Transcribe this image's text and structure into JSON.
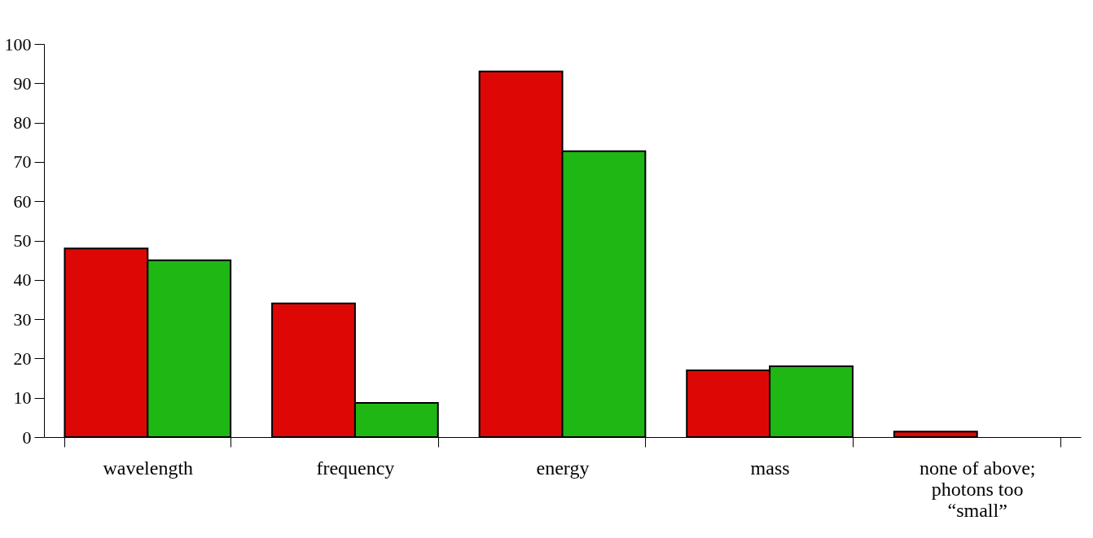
{
  "chart_data": {
    "type": "bar",
    "categories": [
      "wavelength",
      "frequency",
      "energy",
      "mass",
      "none of above;\nphotons too\n“small”"
    ],
    "series": [
      {
        "color": "#dd0806",
        "values": [
          48,
          34,
          93,
          17,
          1.4
        ]
      },
      {
        "color": "#1fb714",
        "values": [
          45,
          8.7,
          72.7,
          18,
          null
        ]
      }
    ],
    "ylim": [
      0,
      100
    ],
    "yticks": [
      0,
      10,
      20,
      30,
      40,
      50,
      60,
      70,
      80,
      90,
      100
    ],
    "grid": false,
    "legend": false
  }
}
